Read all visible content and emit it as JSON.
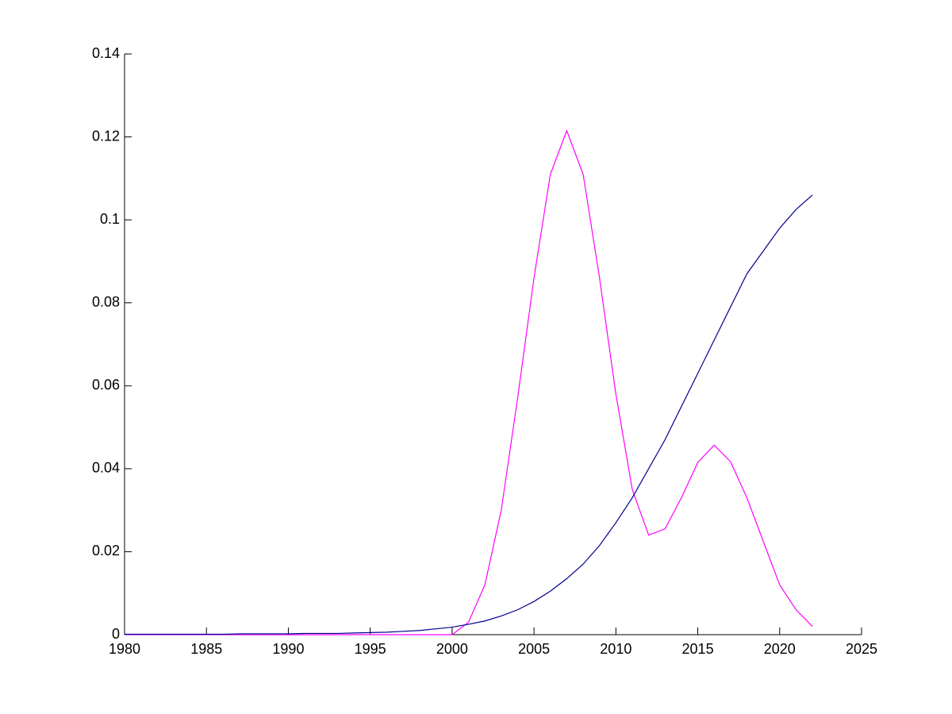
{
  "chart_data": {
    "type": "line",
    "x": [
      1980,
      1981,
      1982,
      1983,
      1984,
      1985,
      1986,
      1987,
      1988,
      1989,
      1990,
      1991,
      1992,
      1993,
      1994,
      1995,
      1996,
      1997,
      1998,
      1999,
      2000,
      2001,
      2002,
      2003,
      2004,
      2005,
      2006,
      2007,
      2008,
      2009,
      2010,
      2011,
      2012,
      2013,
      2014,
      2015,
      2016,
      2017,
      2018,
      2019,
      2020,
      2021,
      2022
    ],
    "series": [
      {
        "color": "#ff00ff",
        "values": [
          0,
          0,
          0,
          0,
          0,
          0,
          0,
          0,
          0,
          0,
          0,
          0,
          0,
          0,
          0,
          0,
          0,
          0,
          0,
          0,
          0,
          0.003,
          0.012,
          0.03,
          0.057,
          0.086,
          0.111,
          0.1215,
          0.111,
          0.086,
          0.058,
          0.035,
          0.024,
          0.0255,
          0.033,
          0.0415,
          0.0457,
          0.0417,
          0.033,
          0.0225,
          0.012,
          0.006,
          0.002
        ]
      },
      {
        "color": "#00008b",
        "values": [
          0.0001,
          0.0001,
          0.0001,
          0.0001,
          0.0001,
          0.0001,
          0.0001,
          0.0002,
          0.0002,
          0.0002,
          0.0002,
          0.0003,
          0.0003,
          0.0003,
          0.0004,
          0.0005,
          0.0006,
          0.0008,
          0.001,
          0.0014,
          0.0018,
          0.0025,
          0.0033,
          0.0045,
          0.006,
          0.008,
          0.0105,
          0.0135,
          0.017,
          0.0215,
          0.027,
          0.033,
          0.04,
          0.047,
          0.055,
          0.063,
          0.071,
          0.079,
          0.087,
          0.0925,
          0.098,
          0.1025,
          0.106
        ]
      }
    ],
    "xlim": [
      1980,
      2025
    ],
    "xticks": [
      1980,
      1985,
      1990,
      1995,
      2000,
      2005,
      2010,
      2015,
      2020,
      2025
    ],
    "ylim": [
      0,
      0.14
    ],
    "yticks": [
      0,
      0.02,
      0.04,
      0.06,
      0.08,
      0.1,
      0.12,
      0.14
    ]
  }
}
